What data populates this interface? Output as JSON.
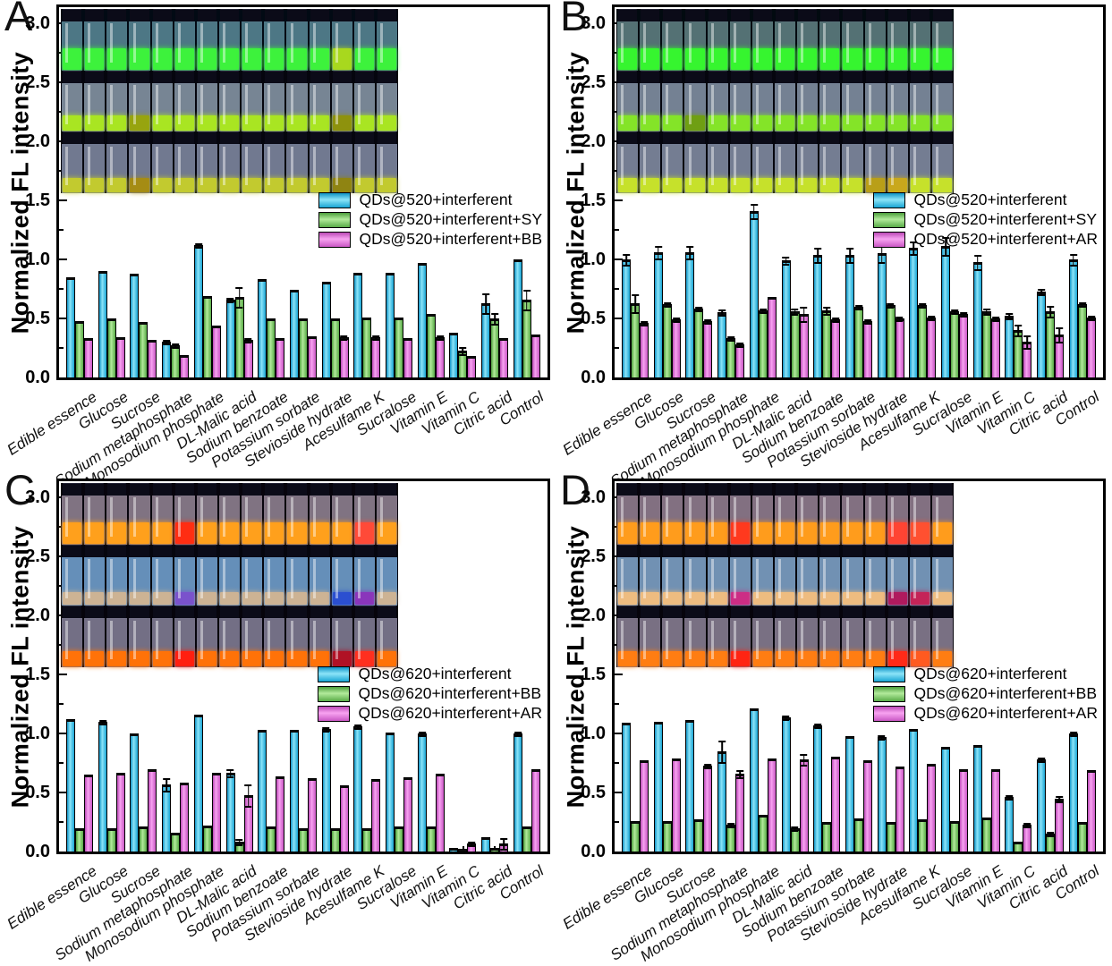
{
  "colors": {
    "series": [
      "#2fbfe6",
      "#7ed06a",
      "#ea77e2"
    ],
    "frame": "#000000",
    "background": "#ffffff"
  },
  "chart_data": {
    "type": "bar",
    "ylabel": "Normalized FL intensity",
    "ylim": [
      0,
      3.2
    ],
    "y_ticks": [
      "0.0",
      "0.5",
      "1.0",
      "1.5",
      "2.0",
      "2.5",
      "3.0"
    ],
    "grid": false,
    "legend_position": "right-middle",
    "categories": [
      "Edible essence",
      "Glucose",
      "Sucrose",
      "Sodium metaphosphate",
      "Monosodium phosphate",
      "DL-Malic acid",
      "Sodium benzoate",
      "Potassium sorbate",
      "Stevioside hydrate",
      "Acesulfame K",
      "Sucralose",
      "Vitamin E",
      "Vitamin C",
      "Citric acid",
      "Control"
    ],
    "panels": [
      {
        "letter": "A",
        "series": [
          {
            "name": "QDs@520+interferent",
            "values": [
              0.85,
              0.9,
              0.88,
              0.3,
              1.12,
              0.66,
              0.83,
              0.74,
              0.81,
              0.89,
              0.89,
              0.97,
              0.38,
              0.63,
              1.0
            ],
            "errors": [
              0.01,
              0.01,
              0.01,
              0.02,
              0.02,
              0.02,
              0.01,
              0.01,
              0.01,
              0.01,
              0.01,
              0.01,
              0.01,
              0.09,
              0.01
            ]
          },
          {
            "name": "QDs@520+interferent+SY",
            "values": [
              0.48,
              0.5,
              0.47,
              0.27,
              0.69,
              0.68,
              0.5,
              0.5,
              0.5,
              0.51,
              0.51,
              0.54,
              0.23,
              0.5,
              0.66
            ],
            "errors": [
              0.01,
              0.01,
              0.01,
              0.02,
              0.01,
              0.09,
              0.01,
              0.01,
              0.01,
              0.01,
              0.01,
              0.01,
              0.04,
              0.05,
              0.09
            ]
          },
          {
            "name": "QDs@520+interferent+BB",
            "values": [
              0.33,
              0.34,
              0.32,
              0.19,
              0.44,
              0.32,
              0.33,
              0.35,
              0.34,
              0.34,
              0.33,
              0.34,
              0.18,
              0.33,
              0.36
            ],
            "errors": [
              0.01,
              0.01,
              0.01,
              0.01,
              0.01,
              0.02,
              0.01,
              0.01,
              0.02,
              0.02,
              0.01,
              0.02,
              0.01,
              0.01,
              0.01
            ]
          }
        ],
        "inset_rows": [
          {
            "bg": "#020a14",
            "glass": "rgba(140,210,225,0.55)",
            "liquid": "#3df23c",
            "liquid_h": 24,
            "overrides": {
              "12": "#a8d81e"
            }
          },
          {
            "bg": "#05050e",
            "glass": "rgba(195,218,238,0.60)",
            "liquid": "#a9e522",
            "liquid_h": 17,
            "overrides": {
              "3": "#97a40f",
              "12": "#8e920d"
            }
          },
          {
            "bg": "#05050e",
            "glass": "rgba(185,198,232,0.60)",
            "liquid": "#c2ca2f",
            "liquid_h": 16,
            "overrides": {
              "3": "#a58c14",
              "12": "#8f8412"
            }
          }
        ]
      },
      {
        "letter": "B",
        "series": [
          {
            "name": "QDs@520+interferent",
            "values": [
              1.0,
              1.06,
              1.06,
              0.55,
              1.41,
              0.99,
              1.04,
              1.04,
              1.05,
              1.1,
              1.11,
              0.98,
              0.52,
              0.73,
              1.0
            ],
            "errors": [
              0.05,
              0.06,
              0.06,
              0.03,
              0.07,
              0.04,
              0.07,
              0.07,
              0.08,
              0.06,
              0.08,
              0.07,
              0.03,
              0.03,
              0.05
            ]
          },
          {
            "name": "QDs@520+interferent+SY",
            "values": [
              0.63,
              0.62,
              0.58,
              0.33,
              0.57,
              0.56,
              0.57,
              0.6,
              0.61,
              0.61,
              0.56,
              0.56,
              0.4,
              0.56,
              0.62
            ],
            "errors": [
              0.08,
              0.02,
              0.02,
              0.02,
              0.02,
              0.03,
              0.04,
              0.02,
              0.02,
              0.02,
              0.02,
              0.03,
              0.05,
              0.05,
              0.02
            ]
          },
          {
            "name": "QDs@520+interferent+AR",
            "values": [
              0.46,
              0.49,
              0.48,
              0.28,
              0.68,
              0.54,
              0.49,
              0.48,
              0.5,
              0.51,
              0.54,
              0.5,
              0.3,
              0.36,
              0.51
            ],
            "errors": [
              0.02,
              0.02,
              0.02,
              0.02,
              0.01,
              0.07,
              0.02,
              0.02,
              0.02,
              0.02,
              0.02,
              0.02,
              0.06,
              0.07,
              0.02
            ]
          }
        ],
        "inset_rows": [
          {
            "bg": "#020a10",
            "glass": "rgba(165,215,215,0.50)",
            "liquid": "#36f52f",
            "liquid_h": 24,
            "overrides": {}
          },
          {
            "bg": "#05050e",
            "glass": "rgba(190,212,236,0.60)",
            "liquid": "#84e428",
            "liquid_h": 17,
            "overrides": {
              "3": "#6f9f13"
            }
          },
          {
            "bg": "#05050e",
            "glass": "rgba(190,205,235,0.60)",
            "liquid": "#c6e12b",
            "liquid_h": 16,
            "overrides": {
              "11": "#b99f18",
              "12": "#c9a81c"
            }
          }
        ]
      },
      {
        "letter": "C",
        "series": [
          {
            "name": "QDs@620+interferent",
            "values": [
              1.12,
              1.1,
              1.0,
              0.57,
              1.16,
              0.67,
              1.03,
              1.03,
              1.04,
              1.06,
              1.01,
              1.0,
              0.03,
              0.12,
              1.0
            ],
            "errors": [
              0.01,
              0.02,
              0.01,
              0.06,
              0.01,
              0.04,
              0.01,
              0.01,
              0.02,
              0.02,
              0.01,
              0.02,
              0.01,
              0.01,
              0.02
            ]
          },
          {
            "name": "QDs@620+interferent+BB",
            "values": [
              0.2,
              0.2,
              0.21,
              0.16,
              0.22,
              0.08,
              0.21,
              0.2,
              0.2,
              0.2,
              0.21,
              0.21,
              0.02,
              0.03,
              0.21
            ],
            "errors": [
              0.01,
              0.01,
              0.01,
              0.01,
              0.01,
              0.03,
              0.01,
              0.01,
              0.01,
              0.01,
              0.01,
              0.01,
              0.01,
              0.01,
              0.01
            ]
          },
          {
            "name": "QDs@620+interferent+AR",
            "values": [
              0.65,
              0.67,
              0.7,
              0.58,
              0.67,
              0.48,
              0.64,
              0.62,
              0.56,
              0.61,
              0.63,
              0.66,
              0.07,
              0.07,
              0.7
            ],
            "errors": [
              0.01,
              0.01,
              0.01,
              0.01,
              0.01,
              0.1,
              0.01,
              0.01,
              0.01,
              0.01,
              0.01,
              0.01,
              0.02,
              0.05,
              0.01
            ]
          }
        ],
        "inset_rows": [
          {
            "bg": "#07040d",
            "glass": "rgba(228,208,228,0.55)",
            "liquid": "#ffa01c",
            "liquid_h": 24,
            "overrides": {
              "5": "#ff2d12",
              "13": "#ff4a38"
            }
          },
          {
            "bg": "#06060f",
            "glass": "rgba(125,178,228,0.80)",
            "liquid": "#cdb394",
            "liquid_h": 14,
            "overrides": {
              "5": "#7a52cc",
              "12": "#2b4fd0",
              "13": "#8a35bb"
            }
          },
          {
            "bg": "#06040c",
            "glass": "rgba(206,200,234,0.55)",
            "liquid": "#ff7208",
            "liquid_h": 17,
            "overrides": {
              "5": "#ff1f10",
              "12": "#b01225",
              "13": "#ff2f1f"
            }
          }
        ]
      },
      {
        "letter": "D",
        "series": [
          {
            "name": "QDs@620+interferent",
            "values": [
              1.09,
              1.1,
              1.11,
              0.85,
              1.21,
              1.14,
              1.07,
              0.98,
              0.97,
              1.04,
              0.89,
              0.9,
              0.46,
              0.78,
              1.0
            ],
            "errors": [
              0.01,
              0.01,
              0.01,
              0.1,
              0.01,
              0.02,
              0.02,
              0.01,
              0.02,
              0.01,
              0.01,
              0.01,
              0.02,
              0.02,
              0.02
            ]
          },
          {
            "name": "QDs@620+interferent+BB",
            "values": [
              0.26,
              0.26,
              0.27,
              0.23,
              0.31,
              0.2,
              0.25,
              0.28,
              0.25,
              0.27,
              0.26,
              0.29,
              0.08,
              0.15,
              0.25
            ],
            "errors": [
              0.01,
              0.01,
              0.01,
              0.02,
              0.01,
              0.02,
              0.01,
              0.01,
              0.01,
              0.01,
              0.01,
              0.01,
              0.01,
              0.02,
              0.01
            ]
          },
          {
            "name": "QDs@620+interferent+AR",
            "values": [
              0.77,
              0.79,
              0.73,
              0.66,
              0.79,
              0.78,
              0.8,
              0.77,
              0.72,
              0.74,
              0.7,
              0.7,
              0.23,
              0.45,
              0.69
            ],
            "errors": [
              0.01,
              0.01,
              0.02,
              0.04,
              0.01,
              0.05,
              0.01,
              0.01,
              0.01,
              0.01,
              0.01,
              0.01,
              0.02,
              0.03,
              0.01
            ]
          }
        ],
        "inset_rows": [
          {
            "bg": "#07040d",
            "glass": "rgba(232,202,226,0.55)",
            "liquid": "#ff9c1c",
            "liquid_h": 24,
            "overrides": {
              "5": "#ff391e",
              "12": "#ff4433",
              "13": "#ff5030"
            }
          },
          {
            "bg": "#06060f",
            "glass": "rgba(150,192,235,0.75)",
            "liquid": "#eebc80",
            "liquid_h": 14,
            "overrides": {
              "5": "#cc2d85",
              "12": "#b01a5e",
              "13": "#c42458"
            }
          },
          {
            "bg": "#06040c",
            "glass": "rgba(216,202,230,0.55)",
            "liquid": "#ff7d12",
            "liquid_h": 17,
            "overrides": {
              "5": "#ff2413",
              "12": "#ff2a18",
              "13": "#ff5a20"
            }
          }
        ]
      }
    ]
  }
}
